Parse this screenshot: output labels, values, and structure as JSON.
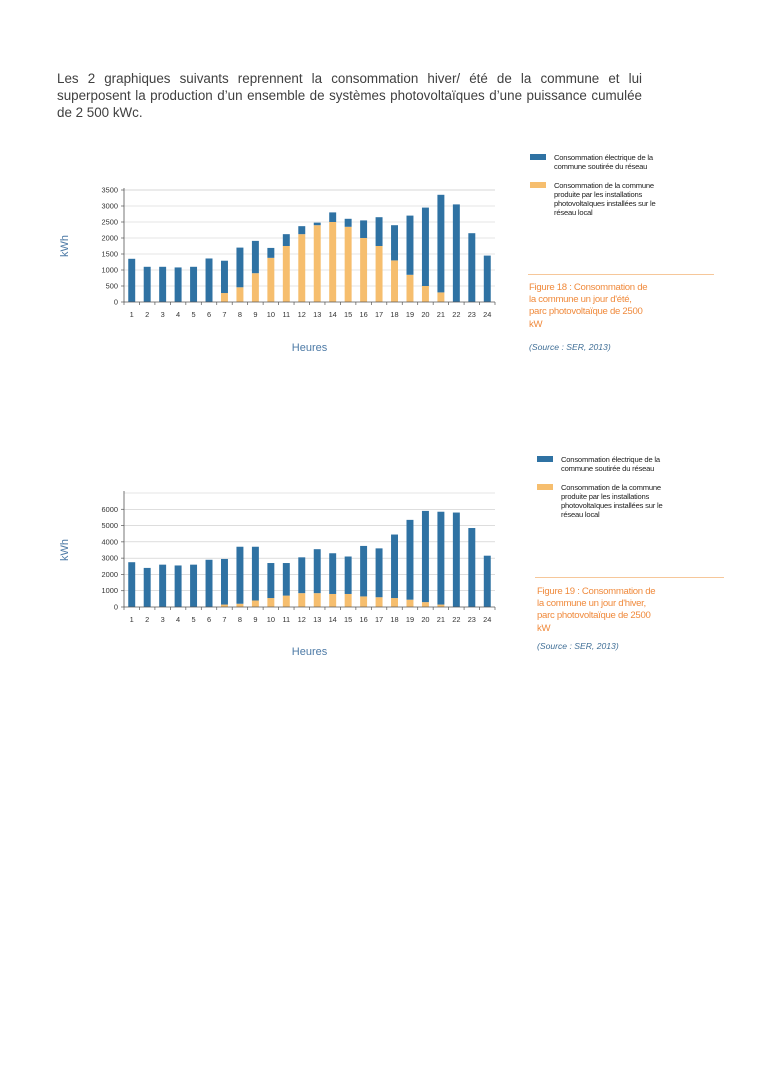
{
  "intro_text": "Les 2 graphiques suivants reprennent la consommation hiver/ été de la commune et lui superposent la production d’un ensemble de systèmes photovoltaïques d’une puissance cumulée de 2 500 kWc.",
  "colors": {
    "grid": "#c9c9c9",
    "axis": "#555555"
  },
  "charts": [
    {
      "legend": {
        "grid_label": "Consommation électrique de la commune soutirée du réseau",
        "pv_label": "Consommation de la commune produite par les installations photovoltaïques installées sur le réseau local"
      },
      "caption": "Figure 18 : Consommation de la commune un jour d'été, parc photovoltaïque de 2500 kW",
      "source": "(Source : SER, 2013)"
    },
    {
      "legend": {
        "grid_label": "Consommation électrique de la commune soutirée du réseau",
        "pv_label": "Consommation de la commune produite par les installations photovoltaïques installées sur le réseau local"
      },
      "caption": "Figure 19 : Consommation de la commune un jour d'hiver, parc photovoltaïque de 2500 kW",
      "source": "(Source : SER, 2013)"
    }
  ],
  "chart_data": [
    {
      "type": "bar",
      "stacked": true,
      "categories": [
        "1",
        "2",
        "3",
        "4",
        "5",
        "6",
        "7",
        "8",
        "9",
        "10",
        "11",
        "12",
        "13",
        "14",
        "15",
        "16",
        "17",
        "18",
        "19",
        "20",
        "21",
        "22",
        "23",
        "24"
      ],
      "series": [
        {
          "name": "Consommation électrique de la commune soutirée du réseau",
          "color": "#2f72a3",
          "values": [
            1350,
            1100,
            1100,
            1080,
            1100,
            1360,
            1010,
            1240,
            1010,
            310,
            370,
            250,
            80,
            300,
            250,
            550,
            900,
            1100,
            1850,
            2450,
            3050,
            3050,
            2150,
            1450
          ]
        },
        {
          "name": "Consommation de la commune produite par les installations photovoltaïques installées sur le réseau local",
          "color": "#f6be6e",
          "values": [
            0,
            0,
            0,
            0,
            0,
            0,
            280,
            460,
            900,
            1380,
            1750,
            2120,
            2400,
            2500,
            2350,
            2000,
            1750,
            1300,
            850,
            500,
            300,
            0,
            0,
            0
          ]
        }
      ],
      "yticks": [
        0,
        500,
        1000,
        1500,
        2000,
        2500,
        3000,
        3500
      ],
      "ylim": [
        0,
        3500
      ],
      "xlabel": "Heures",
      "ylabel": "kWh",
      "grid": true
    },
    {
      "type": "bar",
      "stacked": true,
      "categories": [
        "1",
        "2",
        "3",
        "4",
        "5",
        "6",
        "7",
        "8",
        "9",
        "10",
        "11",
        "12",
        "13",
        "14",
        "15",
        "16",
        "17",
        "18",
        "19",
        "20",
        "21",
        "22",
        "23",
        "24"
      ],
      "series": [
        {
          "name": "Consommation électrique de la commune soutirée du réseau",
          "color": "#2f72a3",
          "values": [
            2750,
            2400,
            2600,
            2550,
            2600,
            2900,
            2800,
            3500,
            3300,
            2150,
            2000,
            2200,
            2700,
            2500,
            2300,
            3100,
            3000,
            3900,
            4900,
            5600,
            5700,
            5800,
            4850,
            3150
          ]
        },
        {
          "name": "Consommation de la commune produite par les installations photovoltaïques installées sur le réseau local",
          "color": "#f6be6e",
          "values": [
            0,
            0,
            0,
            0,
            0,
            0,
            150,
            200,
            400,
            550,
            700,
            850,
            850,
            800,
            800,
            650,
            600,
            550,
            450,
            300,
            150,
            0,
            0,
            0
          ]
        }
      ],
      "yticks": [
        0,
        1000,
        2000,
        3000,
        4000,
        5000,
        6000
      ],
      "ylim": [
        0,
        7000
      ],
      "xlabel": "Heures",
      "ylabel": "kWh",
      "grid": true
    }
  ]
}
